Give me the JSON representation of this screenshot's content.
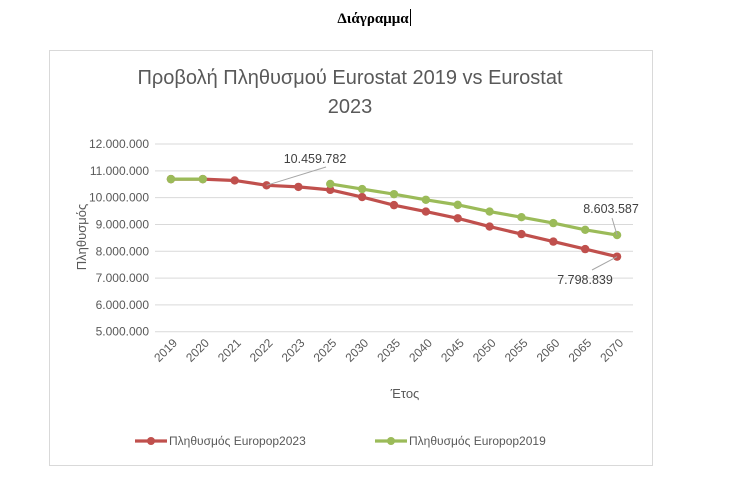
{
  "document": {
    "heading": "Διάγραμμα"
  },
  "chart_data": {
    "type": "line",
    "title": "Προβολή Πληθυσμού Eurostat 2019 vs Eurostat 2023",
    "title_lines": [
      "Προβολή Πληθυσμού Eurostat 2019 vs Eurostat",
      "2023"
    ],
    "xlabel": "Έτος",
    "ylabel": "Πληθυσμός",
    "ylim": [
      5000000,
      12000000
    ],
    "yticks": [
      "5.000.000",
      "6.000.000",
      "7.000.000",
      "8.000.000",
      "9.000.000",
      "10.000.000",
      "11.000.000",
      "12.000.000"
    ],
    "ytick_values": [
      5000000,
      6000000,
      7000000,
      8000000,
      9000000,
      10000000,
      11000000,
      12000000
    ],
    "grid": true,
    "legend_position": "bottom",
    "categories": [
      "2019",
      "2020",
      "2021",
      "2022",
      "2023",
      "2025",
      "2030",
      "2035",
      "2040",
      "2045",
      "2050",
      "2055",
      "2060",
      "2065",
      "2070"
    ],
    "series": [
      {
        "name": "Πληθυσμός Europop2023",
        "color": "#C0504D",
        "values": [
          10690000,
          10690000,
          10640000,
          10459782,
          10400000,
          10290000,
          10020000,
          9720000,
          9480000,
          9230000,
          8920000,
          8640000,
          8360000,
          8080000,
          7798839
        ]
      },
      {
        "name": "Πληθυσμός Europop2019",
        "color": "#9BBB59",
        "values": [
          10690000,
          10690000,
          null,
          null,
          null,
          10510000,
          10320000,
          10130000,
          9920000,
          9730000,
          9480000,
          9270000,
          9050000,
          8800000,
          8603587
        ]
      }
    ],
    "annotations": [
      {
        "text": "10.459.782",
        "series": 0,
        "category": "2022"
      },
      {
        "text": "8.603.587",
        "series": 1,
        "category": "2070"
      },
      {
        "text": "7.798.839",
        "series": 0,
        "category": "2070"
      }
    ]
  }
}
